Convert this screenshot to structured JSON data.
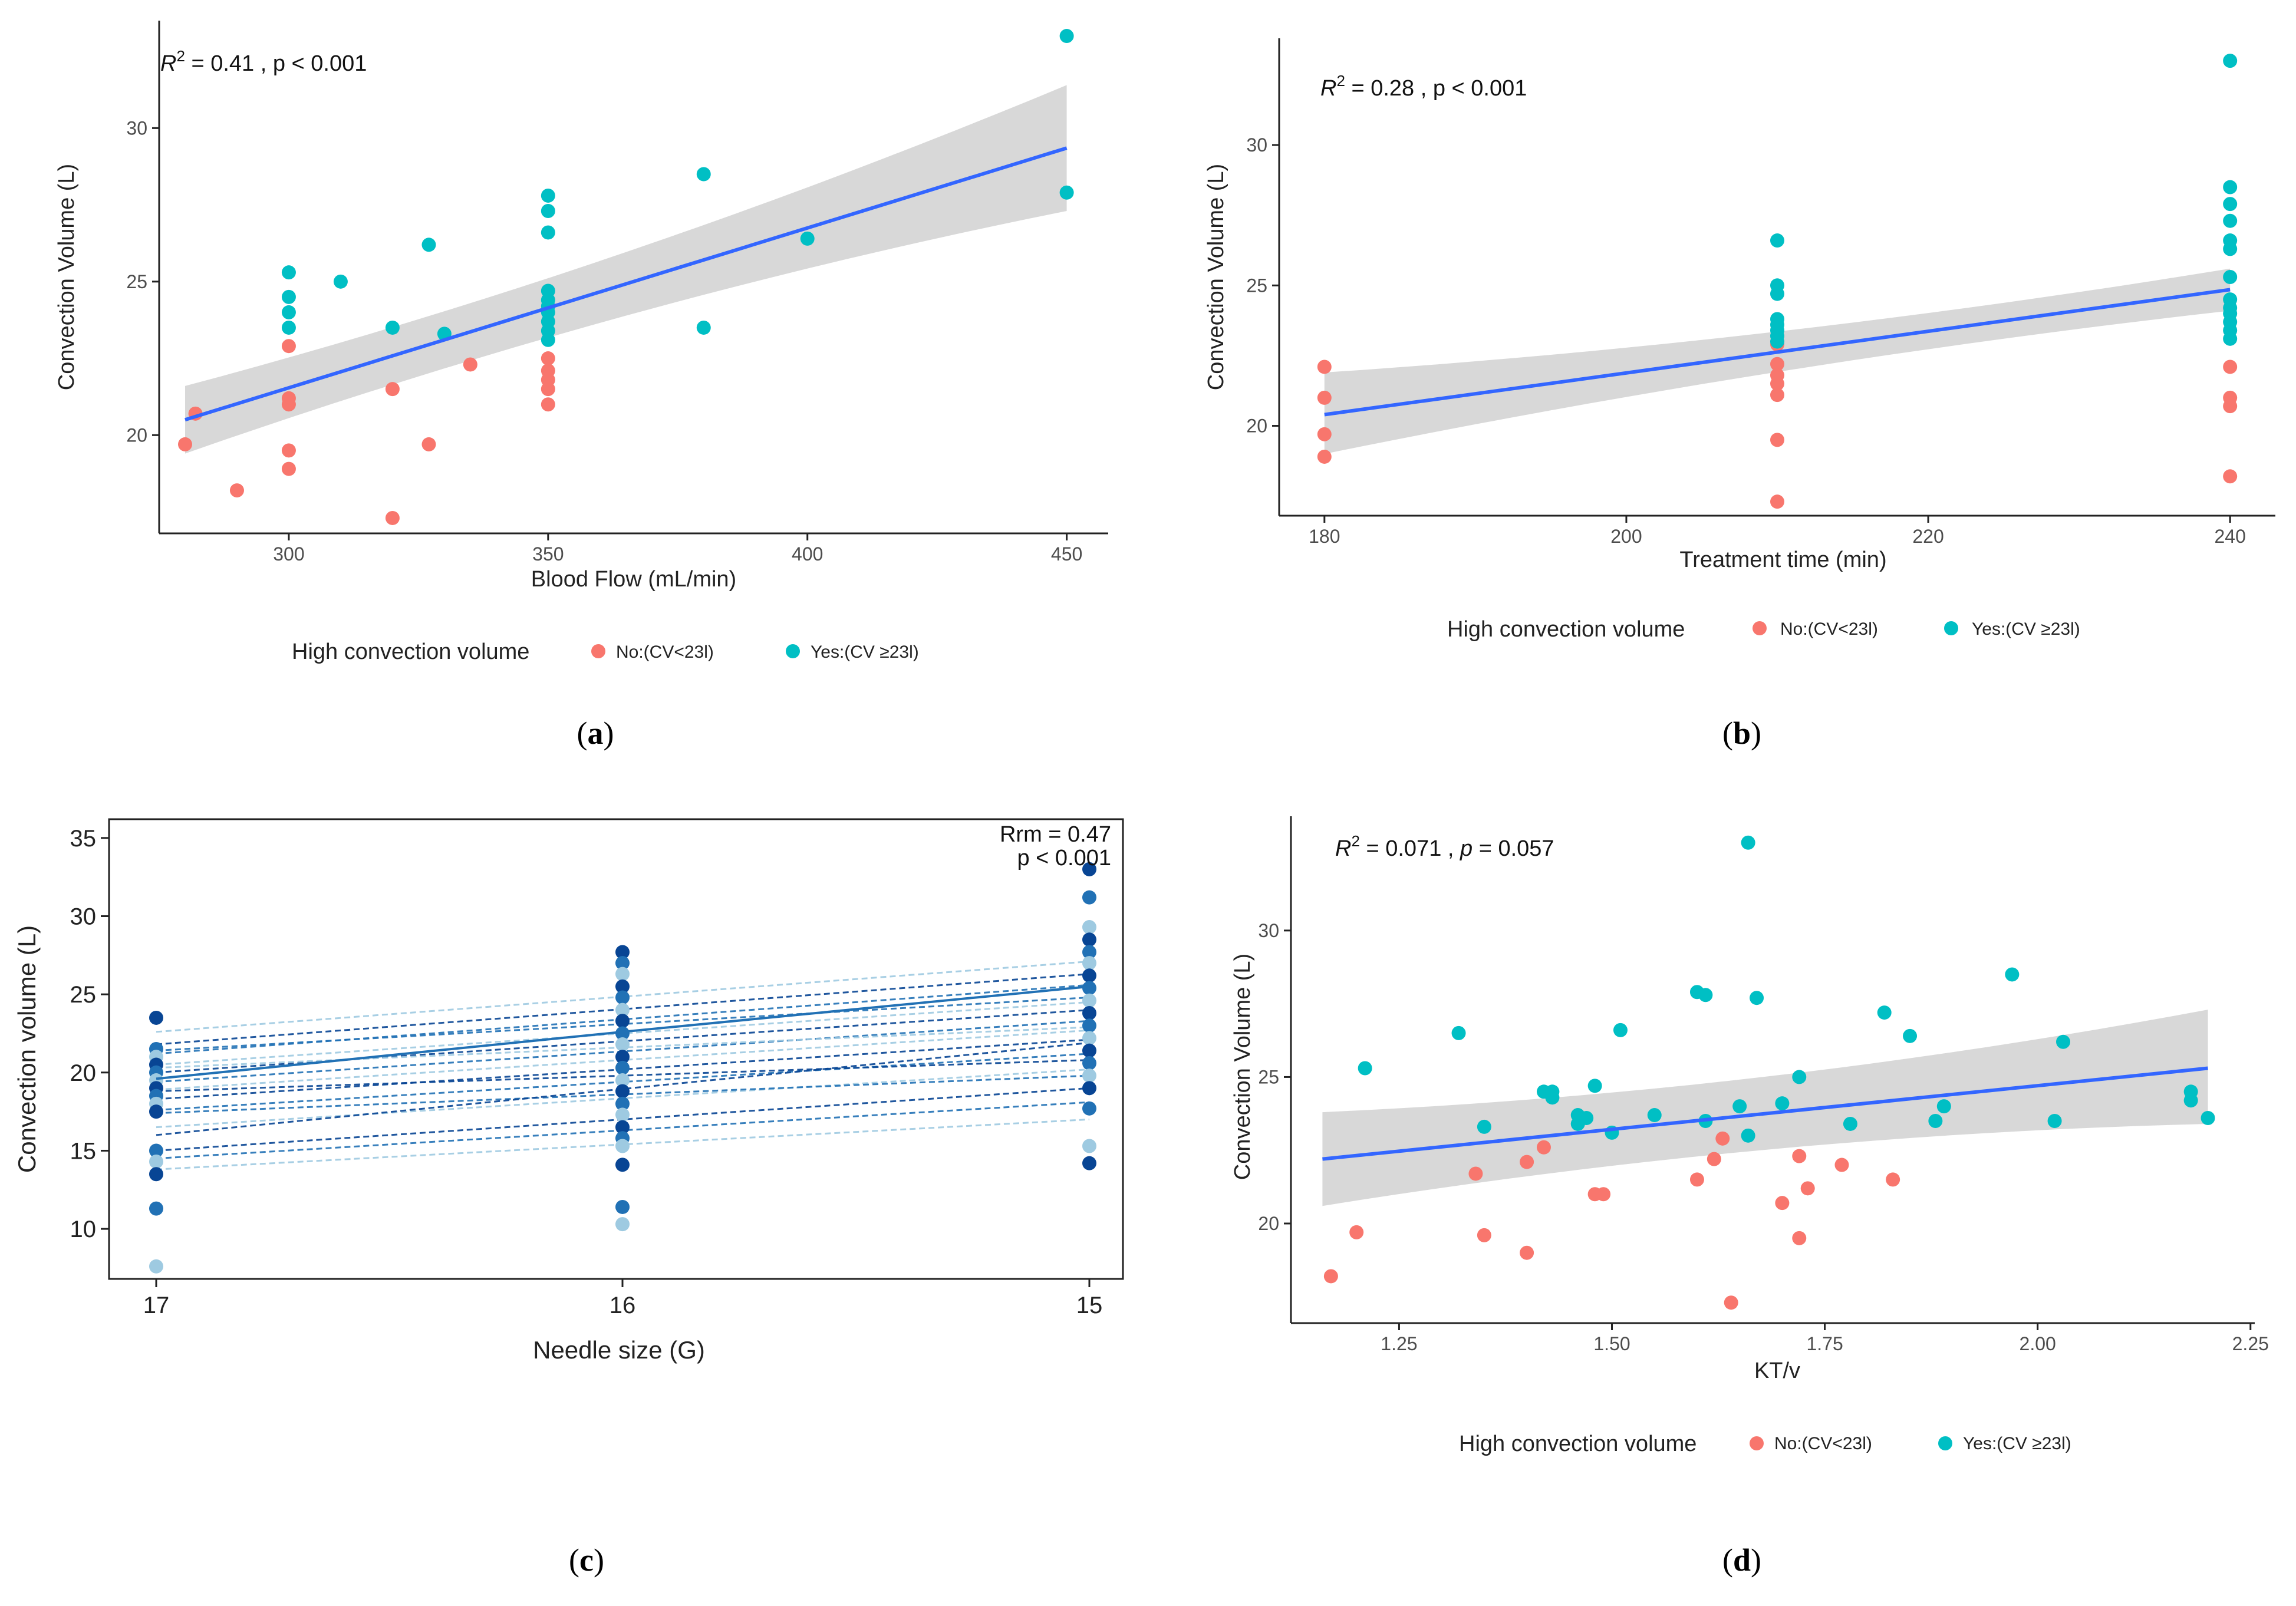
{
  "colors": {
    "no": "#F8766D",
    "yes": "#00BFC4",
    "fit": "#3366FF",
    "band": "#BEBEBE",
    "blue_dark": "#084594",
    "blue_mid": "#2171B5",
    "blue_light": "#9ECAE1"
  },
  "legend": {
    "title": "High convection volume",
    "no_label": "No:(CV<23l)",
    "yes_label": "Yes:(CV ≥23l)"
  },
  "chart_data": [
    {
      "panel": "a",
      "caption": "a",
      "type": "scatter",
      "annotation": {
        "r2": "0.41",
        "p": "p < 0.001"
      },
      "xlabel": "Blood Flow (mL/min)",
      "ylabel": "Convection Volume (L)",
      "xlim": [
        275,
        458
      ],
      "ylim": [
        16.8,
        33.5
      ],
      "xticks": [
        300,
        350,
        400,
        450
      ],
      "yticks": [
        20,
        25,
        30
      ],
      "xtick_labels": [
        "300",
        "350",
        "400",
        "450"
      ],
      "ytick_labels": [
        "20",
        "25",
        "30"
      ],
      "fit": {
        "x": [
          280,
          450
        ],
        "y": [
          20.5,
          29.35
        ],
        "lo": [
          19.4,
          27.3
        ],
        "hi": [
          21.6,
          31.4
        ]
      },
      "no_points": [
        [
          280,
          19.7
        ],
        [
          282,
          20.7
        ],
        [
          290,
          18.2
        ],
        [
          300,
          22.9
        ],
        [
          300,
          21.2
        ],
        [
          300,
          21.0
        ],
        [
          300,
          19.5
        ],
        [
          300,
          18.9
        ],
        [
          320,
          21.5
        ],
        [
          320,
          17.3
        ],
        [
          327,
          19.7
        ],
        [
          335,
          22.3
        ],
        [
          350,
          22.5
        ],
        [
          350,
          22.1
        ],
        [
          350,
          21.8
        ],
        [
          350,
          21.5
        ],
        [
          350,
          21.0
        ]
      ],
      "yes_points": [
        [
          300,
          25.3
        ],
        [
          300,
          24.5
        ],
        [
          300,
          24.0
        ],
        [
          300,
          23.5
        ],
        [
          310,
          25.0
        ],
        [
          320,
          23.5
        ],
        [
          327,
          26.2
        ],
        [
          330,
          23.3
        ],
        [
          350,
          27.8
        ],
        [
          350,
          27.3
        ],
        [
          350,
          26.6
        ],
        [
          350,
          24.7
        ],
        [
          350,
          24.4
        ],
        [
          350,
          24.2
        ],
        [
          350,
          24.0
        ],
        [
          350,
          23.7
        ],
        [
          350,
          23.4
        ],
        [
          350,
          23.1
        ],
        [
          380,
          28.5
        ],
        [
          380,
          23.5
        ],
        [
          400,
          26.4
        ],
        [
          450,
          33.0
        ],
        [
          450,
          27.9
        ]
      ]
    },
    {
      "panel": "b",
      "caption": "b",
      "type": "scatter",
      "annotation": {
        "r2": "0.28",
        "p": "p < 0.001"
      },
      "xlabel": "Treatment time (min)",
      "ylabel": "Convection Volume (L)",
      "xlim": [
        177,
        243
      ],
      "ylim": [
        16.8,
        33.8
      ],
      "xticks": [
        180,
        200,
        220,
        240
      ],
      "yticks": [
        20,
        25,
        30
      ],
      "xtick_labels": [
        "180",
        "200",
        "220",
        "240"
      ],
      "ytick_labels": [
        "20",
        "25",
        "30"
      ],
      "fit": {
        "x": [
          180,
          240
        ],
        "y": [
          20.4,
          24.85
        ],
        "lo": [
          19.0,
          24.1
        ],
        "hi": [
          21.9,
          25.6
        ]
      },
      "no_points": [
        [
          180,
          22.1
        ],
        [
          180,
          21.0
        ],
        [
          180,
          19.7
        ],
        [
          180,
          18.9
        ],
        [
          210,
          22.9
        ],
        [
          210,
          22.2
        ],
        [
          210,
          21.8
        ],
        [
          210,
          21.5
        ],
        [
          210,
          21.1
        ],
        [
          210,
          19.5
        ],
        [
          210,
          17.3
        ],
        [
          240,
          22.1
        ],
        [
          240,
          21.0
        ],
        [
          240,
          20.7
        ],
        [
          240,
          18.2
        ]
      ],
      "yes_points": [
        [
          210,
          26.6
        ],
        [
          210,
          25.0
        ],
        [
          210,
          24.7
        ],
        [
          210,
          23.8
        ],
        [
          210,
          23.6
        ],
        [
          210,
          23.4
        ],
        [
          210,
          23.2
        ],
        [
          210,
          23.0
        ],
        [
          240,
          33.0
        ],
        [
          240,
          28.5
        ],
        [
          240,
          27.9
        ],
        [
          240,
          27.3
        ],
        [
          240,
          26.6
        ],
        [
          240,
          26.3
        ],
        [
          240,
          25.3
        ],
        [
          240,
          24.5
        ],
        [
          240,
          24.2
        ],
        [
          240,
          24.0
        ],
        [
          240,
          23.7
        ],
        [
          240,
          23.4
        ],
        [
          240,
          23.1
        ]
      ]
    },
    {
      "panel": "c",
      "caption": "c",
      "type": "line",
      "annotation": {
        "rrm": "Rrm = 0.47",
        "p": "p < 0.001"
      },
      "xlabel": "Needle size (G)",
      "ylabel": "Convection volume (L)",
      "ylim": [
        6.8,
        36.2
      ],
      "yticks": [
        10,
        15,
        20,
        25,
        30,
        35
      ],
      "ytick_labels": [
        "10",
        "15",
        "20",
        "25",
        "30",
        "35"
      ],
      "categories": [
        "17",
        "16",
        "15"
      ],
      "subject_lines": [
        [
          13.8,
          17.0
        ],
        [
          14.5,
          18.1
        ],
        [
          15.0,
          19.0
        ],
        [
          16.5,
          20.2
        ],
        [
          17.6,
          21.2
        ],
        [
          18.3,
          22.1
        ],
        [
          18.9,
          22.7
        ],
        [
          19.4,
          23.3
        ],
        [
          20.0,
          24.0
        ],
        [
          20.5,
          24.5
        ],
        [
          21.2,
          25.6
        ],
        [
          21.8,
          26.3
        ],
        [
          22.6,
          27.1
        ],
        [
          17.4,
          19.8
        ],
        [
          18.8,
          20.8
        ],
        [
          20.3,
          22.9
        ],
        [
          21.4,
          24.8
        ],
        [
          16.0,
          21.9
        ]
      ],
      "overall": [
        19.6,
        22.6,
        25.5
      ],
      "points": {
        "17": [
          23.5,
          21.5,
          21.0,
          20.5,
          20.0,
          19.5,
          19.0,
          18.5,
          18.0,
          17.5,
          15.0,
          14.3,
          13.5,
          11.3,
          7.6
        ],
        "16": [
          27.7,
          27.0,
          26.3,
          25.5,
          24.8,
          24.0,
          23.3,
          22.5,
          21.8,
          21.0,
          20.3,
          19.5,
          18.8,
          18.0,
          17.3,
          16.5,
          15.8,
          15.3,
          14.1,
          11.4,
          10.3
        ],
        "15": [
          33.0,
          31.2,
          29.3,
          28.5,
          27.7,
          27.0,
          26.2,
          25.4,
          24.6,
          23.8,
          23.0,
          22.2,
          21.4,
          20.6,
          19.8,
          19.0,
          17.7,
          15.3,
          14.2
        ]
      }
    },
    {
      "panel": "d",
      "caption": "d",
      "type": "scatter",
      "annotation": {
        "r2": "0.071",
        "p": "0.057"
      },
      "xlabel": "KT/v",
      "ylabel": "Convection Volume (L)",
      "xlim": [
        1.123,
        2.255
      ],
      "ylim": [
        16.6,
        33.9
      ],
      "xticks": [
        1.25,
        1.5,
        1.75,
        2.0,
        2.25
      ],
      "yticks": [
        20,
        25,
        30
      ],
      "xtick_labels": [
        "1.25",
        "1.50",
        "1.75",
        "2.00",
        "2.25"
      ],
      "ytick_labels": [
        "20",
        "25",
        "30"
      ],
      "fit": {
        "x": [
          1.16,
          2.2
        ],
        "y": [
          22.2,
          25.3
        ],
        "lo": [
          20.6,
          23.4
        ],
        "hi": [
          23.8,
          27.3
        ]
      },
      "no_points": [
        [
          1.17,
          18.2
        ],
        [
          1.2,
          19.7
        ],
        [
          1.34,
          21.7
        ],
        [
          1.35,
          19.6
        ],
        [
          1.4,
          22.1
        ],
        [
          1.4,
          19.0
        ],
        [
          1.42,
          22.6
        ],
        [
          1.48,
          21.0
        ],
        [
          1.49,
          21.0
        ],
        [
          1.6,
          21.5
        ],
        [
          1.62,
          22.2
        ],
        [
          1.63,
          22.9
        ],
        [
          1.64,
          17.3
        ],
        [
          1.7,
          20.7
        ],
        [
          1.72,
          22.3
        ],
        [
          1.72,
          19.5
        ],
        [
          1.73,
          21.2
        ],
        [
          1.77,
          22.0
        ],
        [
          1.83,
          21.5
        ]
      ],
      "yes_points": [
        [
          1.21,
          25.3
        ],
        [
          1.32,
          26.5
        ],
        [
          1.35,
          23.3
        ],
        [
          1.42,
          24.5
        ],
        [
          1.43,
          24.3
        ],
        [
          1.43,
          24.5
        ],
        [
          1.46,
          23.4
        ],
        [
          1.46,
          23.7
        ],
        [
          1.47,
          23.6
        ],
        [
          1.48,
          24.7
        ],
        [
          1.5,
          23.1
        ],
        [
          1.51,
          26.6
        ],
        [
          1.55,
          23.7
        ],
        [
          1.6,
          27.9
        ],
        [
          1.61,
          27.8
        ],
        [
          1.61,
          23.5
        ],
        [
          1.65,
          24.0
        ],
        [
          1.66,
          33.0
        ],
        [
          1.66,
          23.0
        ],
        [
          1.67,
          27.7
        ],
        [
          1.7,
          24.1
        ],
        [
          1.72,
          25.0
        ],
        [
          1.78,
          23.4
        ],
        [
          1.82,
          27.2
        ],
        [
          1.85,
          26.4
        ],
        [
          1.88,
          23.5
        ],
        [
          1.89,
          24.0
        ],
        [
          1.97,
          28.5
        ],
        [
          2.02,
          23.5
        ],
        [
          2.03,
          26.2
        ],
        [
          2.18,
          24.5
        ],
        [
          2.18,
          24.2
        ],
        [
          2.2,
          23.6
        ]
      ]
    }
  ]
}
